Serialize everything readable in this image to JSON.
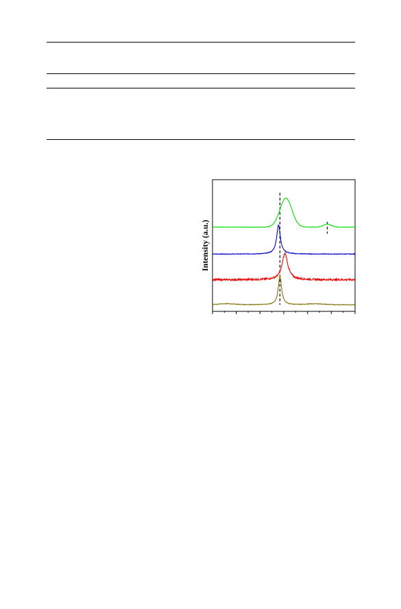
{
  "table": {
    "rules": [
      "top-rule",
      "header-rule",
      "body-rule",
      "bottom-rule"
    ]
  },
  "chart_data": {
    "type": "line",
    "title": "",
    "xlabel": "",
    "ylabel": "Intensity (a.u.)",
    "xlim": [
      0,
      100
    ],
    "ylim": [
      0,
      100
    ],
    "grid": false,
    "legend": "none",
    "series": [
      {
        "color": "#00dd00",
        "baseline": 64,
        "noise": 0.15,
        "peaks": [
          {
            "center": 51.5,
            "height": 22,
            "width": 4.2,
            "shape": "gaussian"
          },
          {
            "center": 80.5,
            "height": 2.2,
            "width": 2.8,
            "shape": "gaussian"
          }
        ]
      },
      {
        "color": "#0000cc",
        "baseline": 43.5,
        "noise": 0.25,
        "peaks": [
          {
            "center": 46.3,
            "height": 22,
            "width": 1.6,
            "shape": "lorentzian"
          }
        ]
      },
      {
        "color": "#ee0000",
        "baseline": 24,
        "noise": 0.7,
        "peaks": [
          {
            "center": 50.8,
            "height": 20,
            "width": 2.4,
            "shape": "lorentzian"
          }
        ]
      },
      {
        "color": "#807000",
        "baseline": 5,
        "noise": 0.2,
        "peaks": [
          {
            "center": 47.3,
            "height": 22,
            "width": 1.4,
            "shape": "lorentzian"
          },
          {
            "center": 10,
            "height": 0.8,
            "width": 6,
            "shape": "gaussian"
          },
          {
            "center": 72,
            "height": 0.7,
            "width": 6,
            "shape": "gaussian"
          }
        ]
      }
    ],
    "reference_lines": [
      {
        "x": 47.3,
        "y_from": 5,
        "y_to": 90,
        "style": "dashed"
      },
      {
        "x": 80.5,
        "y_from": 59,
        "y_to": 68,
        "style": "dashed"
      }
    ],
    "minor_ticks": 12
  }
}
